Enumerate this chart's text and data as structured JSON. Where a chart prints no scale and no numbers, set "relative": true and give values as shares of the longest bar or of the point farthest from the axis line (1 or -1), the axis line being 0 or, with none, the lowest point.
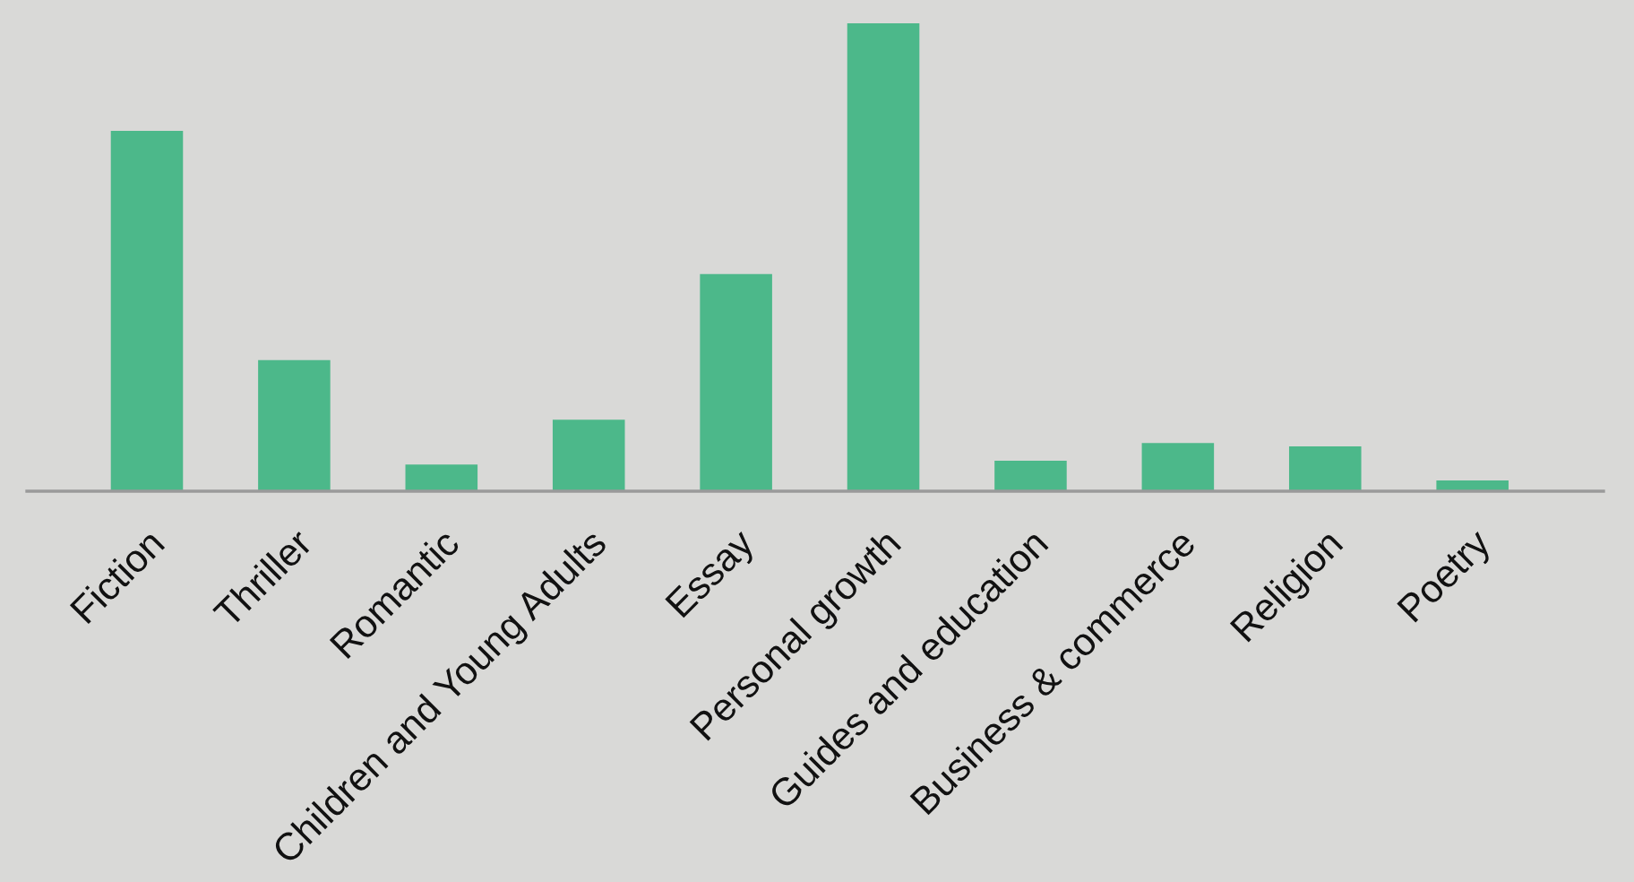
{
  "chart_data": {
    "type": "bar",
    "relative": true,
    "categories": [
      "Fiction",
      "Thriller",
      "Romantic",
      "Children and Young Adults",
      "Essay",
      "Personal growth",
      "Guides and education",
      "Business & commerce",
      "Religion",
      "Poetry"
    ],
    "values": [
      0.77,
      0.28,
      0.057,
      0.153,
      0.464,
      1,
      0.065,
      0.103,
      0.096,
      0.023
    ],
    "color": "#4cb88a",
    "grid": false,
    "legend": false
  }
}
